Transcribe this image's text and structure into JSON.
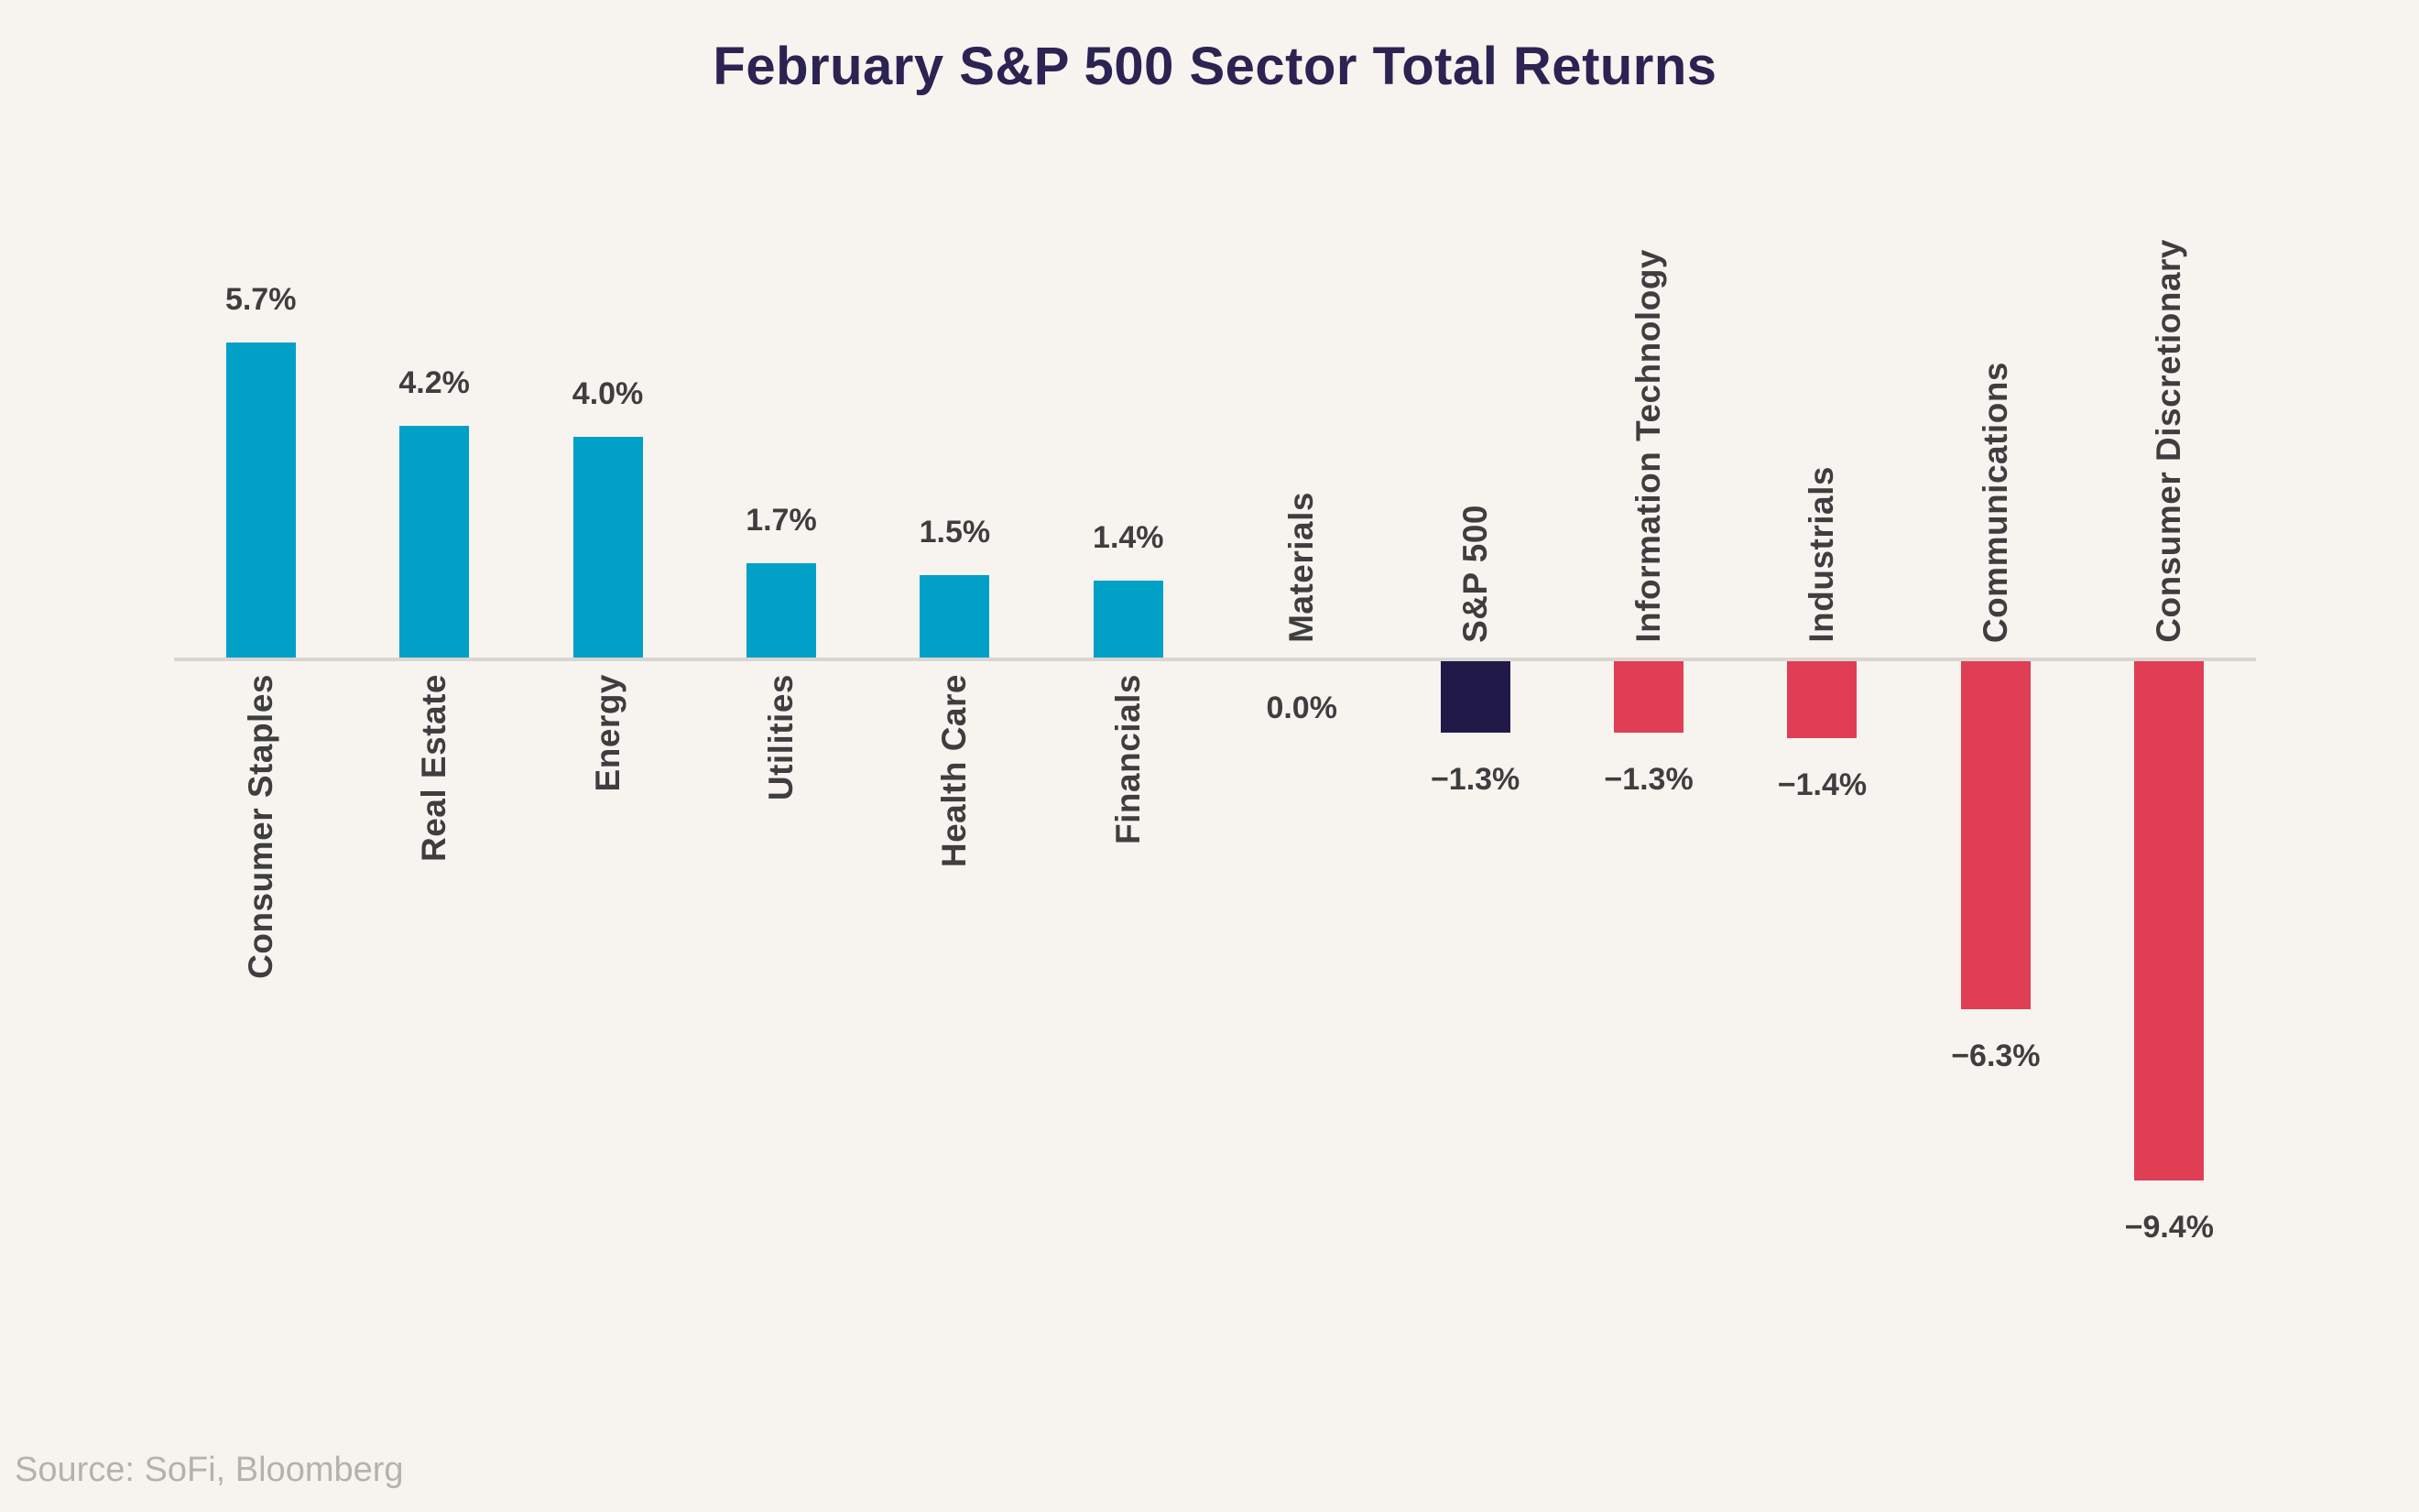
{
  "title": "February S&P 500 Sector Total Returns",
  "source": "Source: SoFi, Bloomberg",
  "chart_data": {
    "type": "bar",
    "title": "February S&P 500 Sector Total Returns",
    "categories": [
      "Consumer Staples",
      "Real Estate",
      "Energy",
      "Utilities",
      "Health Care",
      "Financials",
      "Materials",
      "S&P 500",
      "Information Technology",
      "Industrials",
      "Communications",
      "Consumer Discretionary"
    ],
    "values": [
      5.7,
      4.2,
      4.0,
      1.7,
      1.5,
      1.4,
      0.0,
      -1.3,
      -1.3,
      -1.4,
      -6.3,
      -9.4
    ],
    "value_labels": [
      "5.7%",
      "4.2%",
      "4.0%",
      "1.7%",
      "1.5%",
      "1.4%",
      "0.0%",
      "−1.3%",
      "−1.3%",
      "−1.4%",
      "−6.3%",
      "−9.4%"
    ],
    "benchmark_index": 7,
    "xlabel": "",
    "ylabel": "",
    "ylim": [
      -10,
      6.5
    ],
    "grid": false,
    "legend": "none",
    "colors": {
      "positive": "#00a0c7",
      "negative": "#e03e54",
      "benchmark": "#211a48",
      "axis": "#d9d6d2",
      "label": "#3e3e3e",
      "title": "#2b2351",
      "background": "#f7f4f0",
      "source": "#b5b2ae"
    }
  }
}
